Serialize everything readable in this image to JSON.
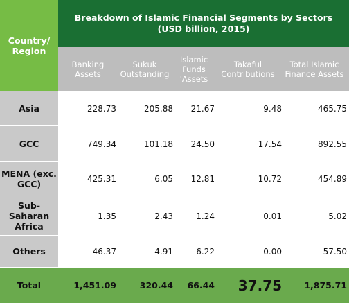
{
  "title": "Breakdown of Islamic Financial Segments by Sectors (USD billion, 2015)",
  "country_header": "Country/ Region",
  "columns": [
    "Banking Assets",
    "Sukuk Outstanding",
    "Islamic Funds 'Assets",
    "Takaful Contributions",
    "Total Islamic Finance Assets"
  ],
  "rows": [
    {
      "label": "Asia",
      "values": [
        "228.73",
        "205.88",
        "21.67",
        "9.48",
        "465.75"
      ]
    },
    {
      "label": "GCC",
      "values": [
        "749.34",
        "101.18",
        "24.50",
        "17.54",
        "892.55"
      ]
    },
    {
      "label": "MENA (exc. GCC)",
      "values": [
        "425.31",
        "6.05",
        "12.81",
        "10.72",
        "454.89"
      ]
    },
    {
      "label": "Sub-Saharan Africa",
      "values": [
        "1.35",
        "2.43",
        "1.24",
        "0.01",
        "5.02"
      ]
    },
    {
      "label": "Others",
      "values": [
        "46.37",
        "4.91",
        "6.22",
        "0.00",
        "57.50"
      ]
    }
  ],
  "total": {
    "label": "Total",
    "values": [
      "1,451.09",
      "320.44",
      "66.44",
      "37.75",
      "1,875.71"
    ]
  },
  "colors": {
    "title_green": "#1a6f33",
    "country_green": "#76bc45",
    "header_gray": "#bdbdbd",
    "label_gray": "#c9c9c9",
    "total_green": "#6aaa4d"
  }
}
